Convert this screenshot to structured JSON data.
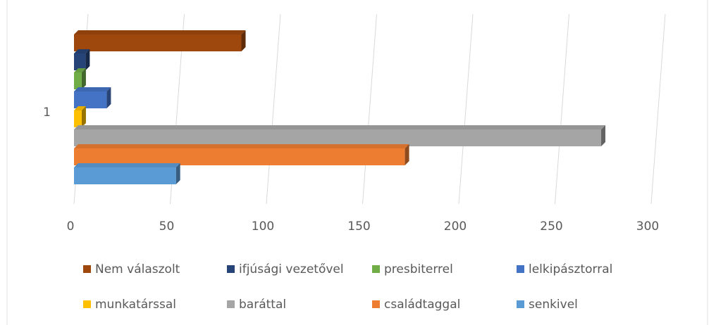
{
  "chart_data": {
    "type": "bar",
    "orientation": "horizontal",
    "style": "3d",
    "categories": [
      "1"
    ],
    "series": [
      {
        "name": "Nem válaszolt",
        "color": "#9e480e",
        "values": [
          87
        ]
      },
      {
        "name": "ifjúsági vezetővel",
        "color": "#264478",
        "values": [
          6
        ]
      },
      {
        "name": "presbiterrel",
        "color": "#70ad47",
        "values": [
          4
        ]
      },
      {
        "name": "lelkipásztorral",
        "color": "#4472c4",
        "values": [
          17
        ]
      },
      {
        "name": "munkatárssal",
        "color": "#ffc000",
        "values": [
          4
        ]
      },
      {
        "name": "baráttal",
        "color": "#a5a5a5",
        "values": [
          274
        ]
      },
      {
        "name": "családtaggal",
        "color": "#ed7d31",
        "values": [
          172
        ]
      },
      {
        "name": "senkivel",
        "color": "#5b9bd5",
        "values": [
          53
        ]
      }
    ],
    "xlim": [
      0,
      300
    ],
    "xticks": [
      0,
      50,
      100,
      150,
      200,
      250,
      300
    ],
    "grid": true,
    "legend": "bottom"
  }
}
